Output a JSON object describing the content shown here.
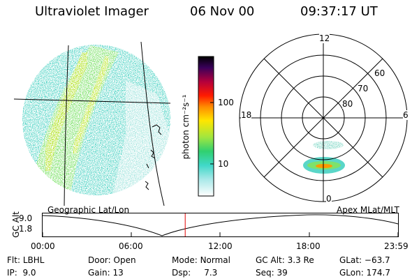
{
  "header": {
    "instrument": "Ultraviolet Imager",
    "date": "06 Nov 00",
    "time": "09:37:17 UT"
  },
  "colorbar": {
    "unit_label": "photon cm⁻²s⁻¹",
    "tick_labels": [
      "100",
      "10"
    ]
  },
  "polar_plot": {
    "mlt_labels": [
      "12",
      "18",
      "6",
      "0"
    ],
    "mlat_labels": [
      "60",
      "70",
      "80"
    ]
  },
  "altitude_plot": {
    "ylabel": "GC Alt",
    "y_ticks": [
      "9.0",
      "1.8"
    ],
    "left_title": "Geographic Lat/Lon",
    "right_title": "Apex MLat/MLT",
    "x_ticks": [
      "00:00",
      "06:00",
      "12:00",
      "18:00",
      "23:59"
    ],
    "current_marker_time": "09:37:17"
  },
  "status": {
    "flt_label": "Flt:",
    "flt_value": "LBHL",
    "ip_label": "IP:",
    "ip_value": "9.0",
    "door_label": "Door:",
    "door_value": "Open",
    "gain_label": "Gain:",
    "gain_value": "13",
    "mode_label": "Mode:",
    "mode_value": "Normal",
    "dsp_label": "Dsp:",
    "dsp_value": "7.3",
    "gcalt_label": "GC Alt:",
    "gcalt_value": "3.3 Re",
    "seq_label": "Seq:",
    "seq_value": "39",
    "glat_label": "GLat:",
    "glat_value": "−63.7",
    "glon_label": "GLon:",
    "glon_value": "174.7"
  }
}
